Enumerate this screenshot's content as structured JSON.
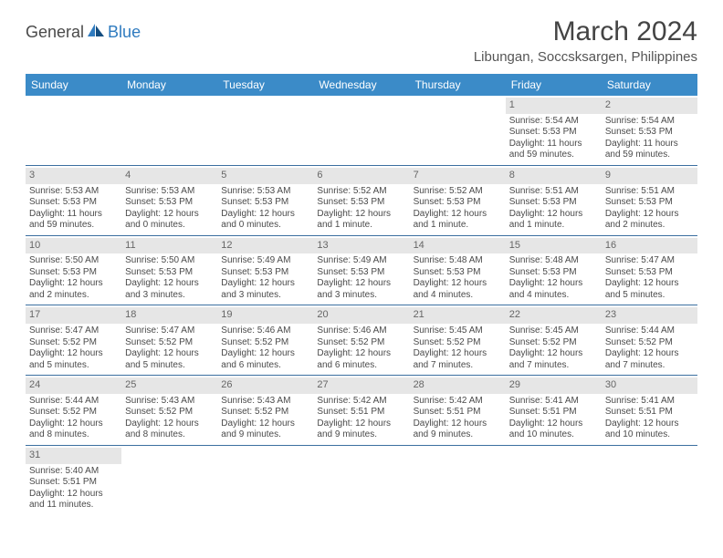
{
  "logo": {
    "textLeft": "General",
    "textRight": "Blue"
  },
  "header": {
    "monthTitle": "March 2024",
    "location": "Libungan, Soccsksargen, Philippines"
  },
  "colors": {
    "headerBar": "#3b8bc8",
    "rowBorder": "#3b6fa0",
    "dayBar": "#e6e6e6",
    "textPrimary": "#4a4a4a",
    "textMuted": "#666666",
    "logoBlue": "#2f7bbf",
    "background": "#ffffff"
  },
  "dayNames": [
    "Sunday",
    "Monday",
    "Tuesday",
    "Wednesday",
    "Thursday",
    "Friday",
    "Saturday"
  ],
  "weeks": [
    [
      {
        "n": "",
        "sunrise": "",
        "sunset": "",
        "daylight": ""
      },
      {
        "n": "",
        "sunrise": "",
        "sunset": "",
        "daylight": ""
      },
      {
        "n": "",
        "sunrise": "",
        "sunset": "",
        "daylight": ""
      },
      {
        "n": "",
        "sunrise": "",
        "sunset": "",
        "daylight": ""
      },
      {
        "n": "",
        "sunrise": "",
        "sunset": "",
        "daylight": ""
      },
      {
        "n": "1",
        "sunrise": "Sunrise: 5:54 AM",
        "sunset": "Sunset: 5:53 PM",
        "daylight": "Daylight: 11 hours and 59 minutes."
      },
      {
        "n": "2",
        "sunrise": "Sunrise: 5:54 AM",
        "sunset": "Sunset: 5:53 PM",
        "daylight": "Daylight: 11 hours and 59 minutes."
      }
    ],
    [
      {
        "n": "3",
        "sunrise": "Sunrise: 5:53 AM",
        "sunset": "Sunset: 5:53 PM",
        "daylight": "Daylight: 11 hours and 59 minutes."
      },
      {
        "n": "4",
        "sunrise": "Sunrise: 5:53 AM",
        "sunset": "Sunset: 5:53 PM",
        "daylight": "Daylight: 12 hours and 0 minutes."
      },
      {
        "n": "5",
        "sunrise": "Sunrise: 5:53 AM",
        "sunset": "Sunset: 5:53 PM",
        "daylight": "Daylight: 12 hours and 0 minutes."
      },
      {
        "n": "6",
        "sunrise": "Sunrise: 5:52 AM",
        "sunset": "Sunset: 5:53 PM",
        "daylight": "Daylight: 12 hours and 1 minute."
      },
      {
        "n": "7",
        "sunrise": "Sunrise: 5:52 AM",
        "sunset": "Sunset: 5:53 PM",
        "daylight": "Daylight: 12 hours and 1 minute."
      },
      {
        "n": "8",
        "sunrise": "Sunrise: 5:51 AM",
        "sunset": "Sunset: 5:53 PM",
        "daylight": "Daylight: 12 hours and 1 minute."
      },
      {
        "n": "9",
        "sunrise": "Sunrise: 5:51 AM",
        "sunset": "Sunset: 5:53 PM",
        "daylight": "Daylight: 12 hours and 2 minutes."
      }
    ],
    [
      {
        "n": "10",
        "sunrise": "Sunrise: 5:50 AM",
        "sunset": "Sunset: 5:53 PM",
        "daylight": "Daylight: 12 hours and 2 minutes."
      },
      {
        "n": "11",
        "sunrise": "Sunrise: 5:50 AM",
        "sunset": "Sunset: 5:53 PM",
        "daylight": "Daylight: 12 hours and 3 minutes."
      },
      {
        "n": "12",
        "sunrise": "Sunrise: 5:49 AM",
        "sunset": "Sunset: 5:53 PM",
        "daylight": "Daylight: 12 hours and 3 minutes."
      },
      {
        "n": "13",
        "sunrise": "Sunrise: 5:49 AM",
        "sunset": "Sunset: 5:53 PM",
        "daylight": "Daylight: 12 hours and 3 minutes."
      },
      {
        "n": "14",
        "sunrise": "Sunrise: 5:48 AM",
        "sunset": "Sunset: 5:53 PM",
        "daylight": "Daylight: 12 hours and 4 minutes."
      },
      {
        "n": "15",
        "sunrise": "Sunrise: 5:48 AM",
        "sunset": "Sunset: 5:53 PM",
        "daylight": "Daylight: 12 hours and 4 minutes."
      },
      {
        "n": "16",
        "sunrise": "Sunrise: 5:47 AM",
        "sunset": "Sunset: 5:53 PM",
        "daylight": "Daylight: 12 hours and 5 minutes."
      }
    ],
    [
      {
        "n": "17",
        "sunrise": "Sunrise: 5:47 AM",
        "sunset": "Sunset: 5:52 PM",
        "daylight": "Daylight: 12 hours and 5 minutes."
      },
      {
        "n": "18",
        "sunrise": "Sunrise: 5:47 AM",
        "sunset": "Sunset: 5:52 PM",
        "daylight": "Daylight: 12 hours and 5 minutes."
      },
      {
        "n": "19",
        "sunrise": "Sunrise: 5:46 AM",
        "sunset": "Sunset: 5:52 PM",
        "daylight": "Daylight: 12 hours and 6 minutes."
      },
      {
        "n": "20",
        "sunrise": "Sunrise: 5:46 AM",
        "sunset": "Sunset: 5:52 PM",
        "daylight": "Daylight: 12 hours and 6 minutes."
      },
      {
        "n": "21",
        "sunrise": "Sunrise: 5:45 AM",
        "sunset": "Sunset: 5:52 PM",
        "daylight": "Daylight: 12 hours and 7 minutes."
      },
      {
        "n": "22",
        "sunrise": "Sunrise: 5:45 AM",
        "sunset": "Sunset: 5:52 PM",
        "daylight": "Daylight: 12 hours and 7 minutes."
      },
      {
        "n": "23",
        "sunrise": "Sunrise: 5:44 AM",
        "sunset": "Sunset: 5:52 PM",
        "daylight": "Daylight: 12 hours and 7 minutes."
      }
    ],
    [
      {
        "n": "24",
        "sunrise": "Sunrise: 5:44 AM",
        "sunset": "Sunset: 5:52 PM",
        "daylight": "Daylight: 12 hours and 8 minutes."
      },
      {
        "n": "25",
        "sunrise": "Sunrise: 5:43 AM",
        "sunset": "Sunset: 5:52 PM",
        "daylight": "Daylight: 12 hours and 8 minutes."
      },
      {
        "n": "26",
        "sunrise": "Sunrise: 5:43 AM",
        "sunset": "Sunset: 5:52 PM",
        "daylight": "Daylight: 12 hours and 9 minutes."
      },
      {
        "n": "27",
        "sunrise": "Sunrise: 5:42 AM",
        "sunset": "Sunset: 5:51 PM",
        "daylight": "Daylight: 12 hours and 9 minutes."
      },
      {
        "n": "28",
        "sunrise": "Sunrise: 5:42 AM",
        "sunset": "Sunset: 5:51 PM",
        "daylight": "Daylight: 12 hours and 9 minutes."
      },
      {
        "n": "29",
        "sunrise": "Sunrise: 5:41 AM",
        "sunset": "Sunset: 5:51 PM",
        "daylight": "Daylight: 12 hours and 10 minutes."
      },
      {
        "n": "30",
        "sunrise": "Sunrise: 5:41 AM",
        "sunset": "Sunset: 5:51 PM",
        "daylight": "Daylight: 12 hours and 10 minutes."
      }
    ],
    [
      {
        "n": "31",
        "sunrise": "Sunrise: 5:40 AM",
        "sunset": "Sunset: 5:51 PM",
        "daylight": "Daylight: 12 hours and 11 minutes."
      },
      {
        "n": "",
        "sunrise": "",
        "sunset": "",
        "daylight": ""
      },
      {
        "n": "",
        "sunrise": "",
        "sunset": "",
        "daylight": ""
      },
      {
        "n": "",
        "sunrise": "",
        "sunset": "",
        "daylight": ""
      },
      {
        "n": "",
        "sunrise": "",
        "sunset": "",
        "daylight": ""
      },
      {
        "n": "",
        "sunrise": "",
        "sunset": "",
        "daylight": ""
      },
      {
        "n": "",
        "sunrise": "",
        "sunset": "",
        "daylight": ""
      }
    ]
  ]
}
